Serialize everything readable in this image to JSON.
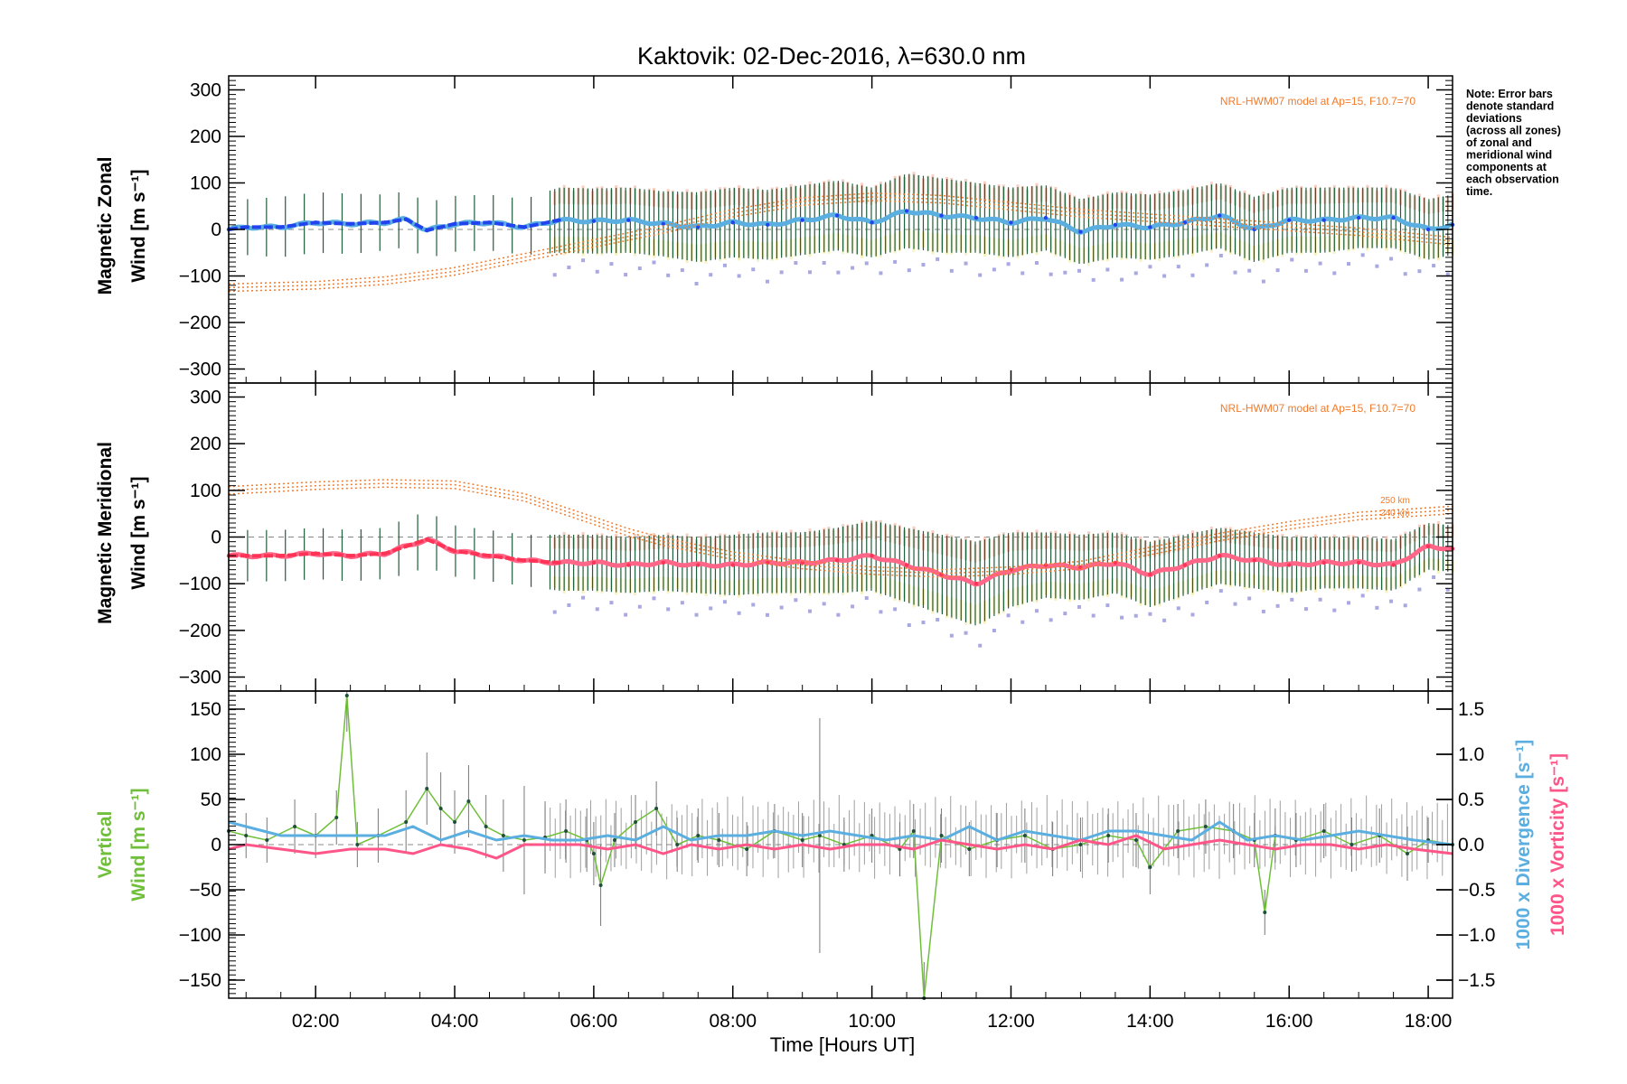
{
  "colors": {
    "zonal_line": "#2244ee",
    "zonal_line_late": "#5aaee0",
    "meridional_line": "#ff3355",
    "meridional_line_late": "#ff6688",
    "errorbar": "#1f5e3a",
    "envelope_upper": "#f7b8a6",
    "envelope_lower": "#f5eeae",
    "zone_points": "#aaa8e0",
    "model": "#f07b2c",
    "vertical_wind": "#6fbf3a",
    "divergence": "#5aaee0",
    "vorticity": "#ff5588",
    "vertical_errorbar": "#777777",
    "zero_line": "#888888"
  },
  "chart_data": [
    {
      "type": "line",
      "panel": "zonal",
      "title": "Kaktovik: 02-Dec-2016, λ=630.0 nm",
      "ylabel_line1": "Magnetic Zonal",
      "ylabel_line2": "Wind [m s⁻¹]",
      "xlabel": "",
      "xlim": [
        0.75,
        18.35
      ],
      "ylim": [
        -330,
        330
      ],
      "yticks": [
        300,
        200,
        100,
        0,
        -100,
        -200,
        -300
      ],
      "yticklabels": [
        "300",
        "200",
        "100",
        "0",
        "−100",
        "−200",
        "−300"
      ],
      "grid": false,
      "model_label": "NRL-HWM07 model at Ap=15, F10.7=70",
      "note": [
        "Note: Error bars",
        "denote standard",
        "deviations",
        "(across all zones)",
        "of zonal and",
        "meridional wind",
        "components at",
        "each observation",
        "time."
      ],
      "series": [
        {
          "name": "",
          "kind": "mean_with_errorbars",
          "x": [
            0.75,
            1.0,
            1.5,
            2.0,
            2.5,
            3.0,
            3.3,
            3.6,
            4.0,
            4.5,
            5.0,
            5.5,
            6.0,
            6.5,
            7.0,
            7.5,
            8.0,
            8.5,
            9.0,
            9.5,
            10.0,
            10.5,
            11.0,
            11.5,
            12.0,
            12.5,
            13.0,
            13.5,
            14.0,
            14.5,
            15.0,
            15.5,
            16.0,
            16.5,
            17.0,
            17.5,
            18.0,
            18.35
          ],
          "values": [
            0,
            5,
            5,
            15,
            12,
            15,
            22,
            -2,
            12,
            15,
            5,
            20,
            18,
            20,
            12,
            5,
            15,
            10,
            20,
            30,
            15,
            40,
            30,
            25,
            15,
            25,
            -5,
            10,
            5,
            15,
            30,
            0,
            20,
            20,
            25,
            25,
            0,
            10
          ],
          "err": [
            60,
            60,
            65,
            65,
            65,
            60,
            60,
            60,
            60,
            60,
            60,
            70,
            70,
            70,
            70,
            75,
            75,
            75,
            75,
            75,
            75,
            80,
            80,
            75,
            75,
            70,
            70,
            70,
            70,
            70,
            70,
            70,
            70,
            70,
            65,
            65,
            65,
            65
          ]
        },
        {
          "name": "",
          "kind": "model",
          "x": [
            0.75,
            2.0,
            3.0,
            4.0,
            5.0,
            6.0,
            7.0,
            8.0,
            9.0,
            10.0,
            11.0,
            12.0,
            13.0,
            14.0,
            15.0,
            16.0,
            17.0,
            18.35
          ],
          "values": [
            -125,
            -120,
            -110,
            -90,
            -60,
            -30,
            0,
            35,
            60,
            70,
            65,
            50,
            35,
            25,
            15,
            5,
            -5,
            -25
          ]
        }
      ]
    },
    {
      "type": "line",
      "panel": "meridional",
      "ylabel_line1": "Magnetic Meridional",
      "ylabel_line2": "Wind [m s⁻¹]",
      "xlim": [
        0.75,
        18.35
      ],
      "ylim": [
        -330,
        330
      ],
      "yticks": [
        300,
        200,
        100,
        0,
        -100,
        -200,
        -300
      ],
      "yticklabels": [
        "300",
        "200",
        "100",
        "0",
        "−100",
        "−200",
        "−300"
      ],
      "grid": false,
      "model_label": "NRL-HWM07 model at Ap=15, F10.7=70",
      "altitude_labels": [
        "250 km",
        "240 km"
      ],
      "series": [
        {
          "name": "",
          "kind": "mean_with_errorbars",
          "x": [
            0.75,
            1.0,
            1.5,
            2.0,
            2.5,
            3.0,
            3.3,
            3.6,
            4.0,
            4.5,
            5.0,
            5.5,
            6.0,
            6.5,
            7.0,
            7.5,
            8.0,
            8.5,
            9.0,
            9.5,
            10.0,
            10.5,
            11.0,
            11.5,
            12.0,
            12.5,
            13.0,
            13.5,
            14.0,
            14.5,
            15.0,
            15.5,
            16.0,
            16.5,
            17.0,
            17.5,
            18.0,
            18.35
          ],
          "values": [
            -40,
            -40,
            -40,
            -35,
            -40,
            -35,
            -20,
            -5,
            -30,
            -40,
            -50,
            -55,
            -55,
            -60,
            -55,
            -60,
            -60,
            -55,
            -55,
            -50,
            -40,
            -60,
            -80,
            -100,
            -70,
            -60,
            -65,
            -55,
            -80,
            -60,
            -40,
            -50,
            -60,
            -55,
            -55,
            -60,
            -20,
            -25
          ],
          "err": [
            60,
            55,
            55,
            55,
            55,
            55,
            60,
            60,
            55,
            55,
            55,
            60,
            60,
            60,
            60,
            60,
            65,
            65,
            65,
            70,
            75,
            80,
            85,
            90,
            80,
            70,
            70,
            65,
            70,
            65,
            60,
            60,
            60,
            55,
            55,
            55,
            50,
            50
          ]
        },
        {
          "name": "",
          "kind": "model",
          "x": [
            0.75,
            2.0,
            3.0,
            4.0,
            5.0,
            6.0,
            6.5,
            7.0,
            8.0,
            9.0,
            10.0,
            11.0,
            12.0,
            13.0,
            14.0,
            15.0,
            16.0,
            17.0,
            18.35
          ],
          "values": [
            100,
            110,
            115,
            112,
            85,
            35,
            10,
            -10,
            -40,
            -60,
            -72,
            -78,
            -72,
            -60,
            -30,
            0,
            25,
            45,
            58
          ]
        }
      ]
    },
    {
      "type": "line",
      "panel": "vertical",
      "ylabel_line1": "Vertical",
      "ylabel_line2": "Wind [m s⁻¹]",
      "y2label_line1": "1000 x Divergence [s⁻¹]",
      "y2label_line2": "1000 x Vorticity [s⁻¹]",
      "xlabel": "Time [Hours UT]",
      "xlim": [
        0.75,
        18.35
      ],
      "xticks": [
        2,
        4,
        6,
        8,
        10,
        12,
        14,
        16,
        18
      ],
      "xticklabels": [
        "02:00",
        "04:00",
        "06:00",
        "08:00",
        "10:00",
        "12:00",
        "14:00",
        "16:00",
        "18:00"
      ],
      "ylim": [
        -170,
        170
      ],
      "yticks": [
        150,
        100,
        50,
        0,
        -50,
        -100,
        -150
      ],
      "yticklabels": [
        "150",
        "100",
        "50",
        "0",
        "−50",
        "−100",
        "−150"
      ],
      "y2lim": [
        -1.7,
        1.7
      ],
      "y2ticks": [
        1.5,
        1.0,
        0.5,
        0.0,
        -0.5,
        -1.0,
        -1.5
      ],
      "y2ticklabels": [
        "1.5",
        "1.0",
        "0.5",
        "0.0",
        "−0.5",
        "−1.0",
        "−1.5"
      ],
      "grid": false,
      "series": [
        {
          "name": "",
          "kind": "vertical_wind",
          "x": [
            0.75,
            1.0,
            1.3,
            1.7,
            2.0,
            2.3,
            2.45,
            2.6,
            2.9,
            3.3,
            3.6,
            3.8,
            4.0,
            4.2,
            4.45,
            4.7,
            5.0,
            5.3,
            5.6,
            5.9,
            6.0,
            6.1,
            6.3,
            6.6,
            6.9,
            7.2,
            7.5,
            7.8,
            8.2,
            8.6,
            9.0,
            9.25,
            9.6,
            10.0,
            10.4,
            10.6,
            10.75,
            11.0,
            11.4,
            11.8,
            12.2,
            12.6,
            13.0,
            13.4,
            13.8,
            14.0,
            14.4,
            14.8,
            15.2,
            15.5,
            15.65,
            15.8,
            16.1,
            16.5,
            16.9,
            17.3,
            17.7,
            18.0,
            18.35
          ],
          "values": [
            15,
            10,
            5,
            20,
            10,
            30,
            165,
            0,
            10,
            25,
            62,
            40,
            25,
            48,
            20,
            10,
            5,
            8,
            15,
            5,
            -10,
            -45,
            5,
            25,
            40,
            0,
            10,
            5,
            -5,
            15,
            5,
            10,
            0,
            10,
            -5,
            15,
            -170,
            10,
            -5,
            5,
            10,
            -5,
            0,
            10,
            5,
            -25,
            15,
            20,
            15,
            5,
            -75,
            10,
            5,
            15,
            0,
            10,
            -10,
            5,
            0
          ],
          "err": [
            30,
            25,
            25,
            30,
            25,
            30,
            40,
            25,
            30,
            35,
            40,
            40,
            35,
            40,
            35,
            40,
            60,
            40,
            35,
            35,
            35,
            45,
            30,
            30,
            30,
            30,
            30,
            30,
            30,
            30,
            30,
            130,
            30,
            30,
            30,
            30,
            40,
            30,
            30,
            30,
            30,
            30,
            30,
            30,
            30,
            30,
            30,
            30,
            30,
            30,
            25,
            30,
            30,
            30,
            30,
            30,
            30,
            25,
            25
          ]
        },
        {
          "name": "",
          "kind": "divergence",
          "x": [
            0.75,
            1.0,
            1.5,
            2.0,
            2.5,
            3.0,
            3.4,
            3.8,
            4.2,
            4.6,
            5.0,
            5.4,
            5.8,
            6.2,
            6.6,
            7.0,
            7.4,
            7.8,
            8.2,
            8.6,
            9.0,
            9.4,
            9.8,
            10.2,
            10.6,
            11.0,
            11.4,
            11.8,
            12.2,
            12.6,
            13.0,
            13.4,
            13.8,
            14.2,
            14.6,
            15.0,
            15.4,
            15.8,
            16.2,
            16.6,
            17.0,
            17.4,
            17.8,
            18.35
          ],
          "values": [
            0.25,
            0.2,
            0.1,
            0.1,
            0.1,
            0.1,
            0.2,
            0.05,
            0.15,
            0.05,
            0.1,
            0.05,
            0.05,
            0.1,
            0.05,
            0.2,
            0.05,
            0.1,
            0.1,
            0.15,
            0.1,
            0.15,
            0.1,
            0.05,
            0.1,
            0.05,
            0.2,
            0.05,
            0.15,
            0.1,
            0.05,
            0.15,
            0.15,
            0.1,
            0.05,
            0.25,
            0.05,
            0.1,
            0.05,
            0.1,
            0.15,
            0.1,
            0.05,
            0.0
          ]
        },
        {
          "name": "",
          "kind": "vorticity",
          "x": [
            0.75,
            1.0,
            1.5,
            2.0,
            2.5,
            3.0,
            3.4,
            3.8,
            4.2,
            4.6,
            5.0,
            5.4,
            5.8,
            6.2,
            6.6,
            7.0,
            7.4,
            7.8,
            8.2,
            8.6,
            9.0,
            9.4,
            9.8,
            10.2,
            10.6,
            11.0,
            11.4,
            11.8,
            12.2,
            12.6,
            13.0,
            13.4,
            13.8,
            14.2,
            14.6,
            15.0,
            15.4,
            15.8,
            16.2,
            16.6,
            17.0,
            17.4,
            17.8,
            18.35
          ],
          "values": [
            -0.05,
            0.0,
            -0.05,
            -0.1,
            -0.05,
            -0.05,
            -0.1,
            0.0,
            -0.05,
            -0.15,
            0.0,
            0.0,
            0.0,
            -0.05,
            0.0,
            -0.1,
            0.0,
            -0.05,
            0.0,
            -0.05,
            0.0,
            -0.05,
            0.0,
            0.0,
            -0.05,
            0.05,
            0.0,
            -0.05,
            0.0,
            -0.05,
            0.05,
            0.0,
            0.1,
            -0.05,
            0.0,
            0.05,
            0.0,
            -0.05,
            0.0,
            0.0,
            -0.05,
            0.0,
            -0.05,
            -0.1
          ]
        }
      ]
    }
  ]
}
